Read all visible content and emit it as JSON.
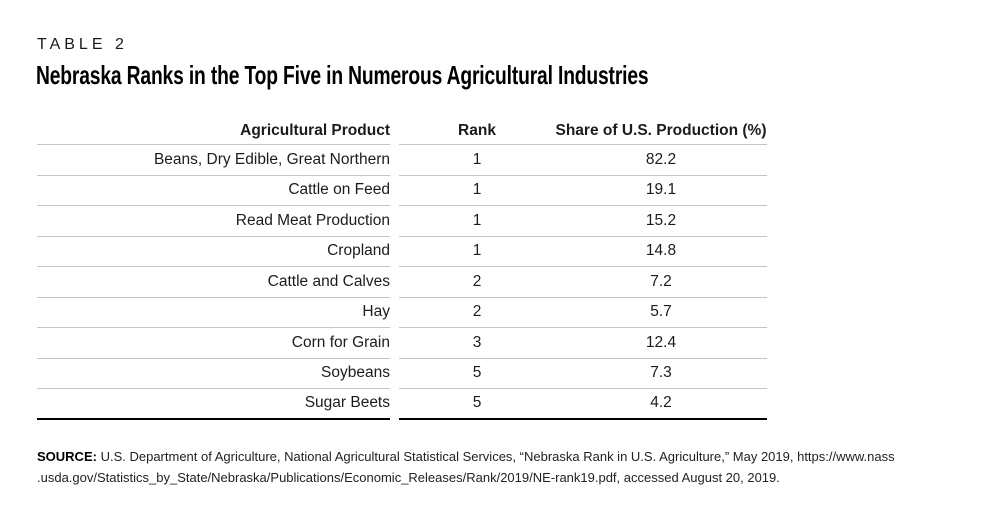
{
  "header": {
    "table_label": "TABLE 2",
    "title": "Nebraska Ranks in the Top Five in Numerous Agricultural Industries"
  },
  "table": {
    "columns": {
      "product": "Agricultural Product",
      "rank": "Rank",
      "share": "Share of U.S. Production (%)"
    },
    "rows": [
      {
        "product": "Beans, Dry Edible, Great Northern",
        "rank": "1",
        "share": "82.2"
      },
      {
        "product": "Cattle on Feed",
        "rank": "1",
        "share": "19.1"
      },
      {
        "product": "Read Meat Production",
        "rank": "1",
        "share": "15.2"
      },
      {
        "product": "Cropland",
        "rank": "1",
        "share": "14.8"
      },
      {
        "product": "Cattle and Calves",
        "rank": "2",
        "share": "7.2"
      },
      {
        "product": "Hay",
        "rank": "2",
        "share": "5.7"
      },
      {
        "product": "Corn for Grain",
        "rank": "3",
        "share": "12.4"
      },
      {
        "product": "Soybeans",
        "rank": "5",
        "share": "7.3"
      },
      {
        "product": "Sugar Beets",
        "rank": "5",
        "share": "4.2"
      }
    ]
  },
  "source": {
    "label": "SOURCE:",
    "line1": "U.S. Department of Agriculture, National Agricultural Statistical Services, “Nebraska Rank in U.S. Agriculture,” May 2019, https://www.nass",
    "line2": ".usda.gov/Statistics_by_State/Nebraska/Publications/Economic_Releases/Rank/2019/NE-rank19.pdf, accessed August 20, 2019."
  },
  "colors": {
    "text": "#1c1c1c",
    "rule_light": "#c4c4c4",
    "rule_heavy": "#000000"
  }
}
